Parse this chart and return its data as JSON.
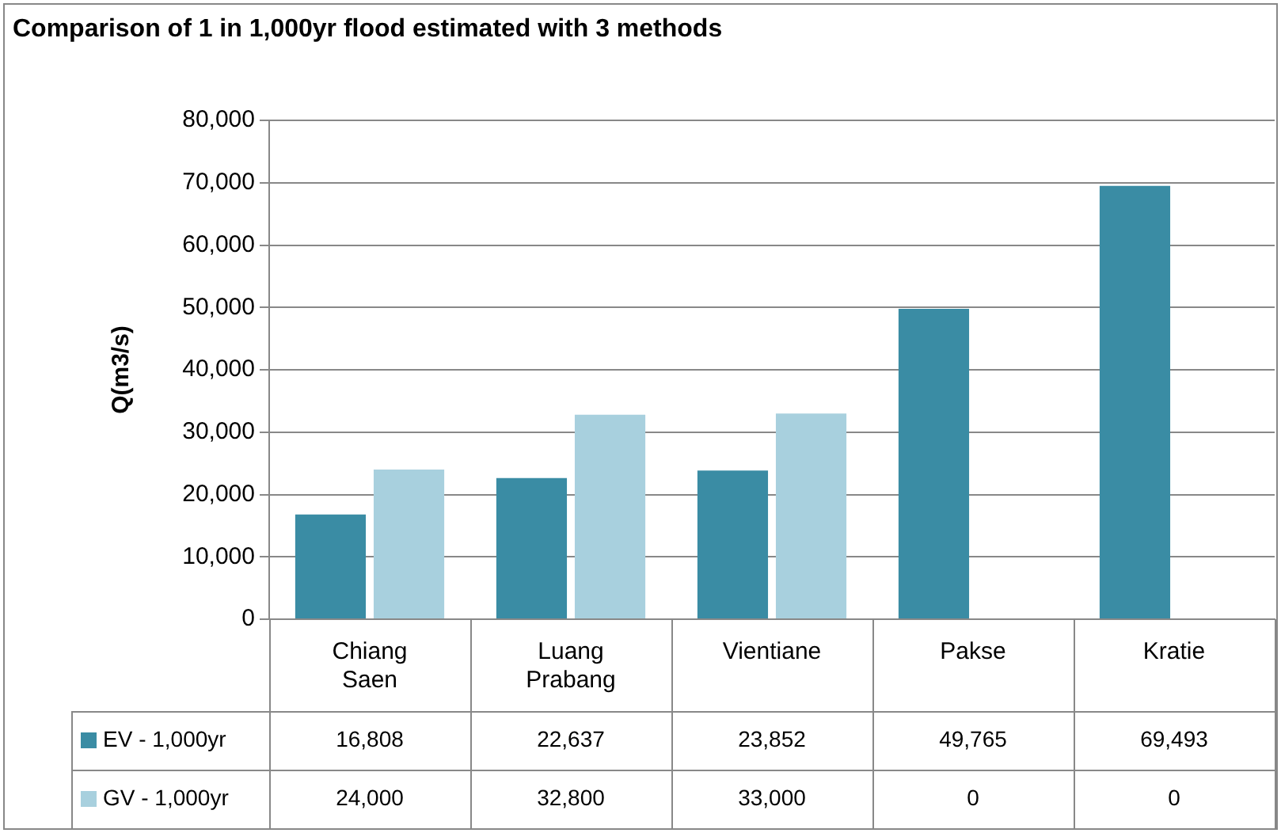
{
  "chart_data": {
    "type": "bar",
    "title": "Comparison of 1 in 1,000yr flood estimated with 3 methods",
    "ylabel": "Q(m3/s)",
    "categories": [
      "Chiang Saen",
      "Luang Prabang",
      "Vientiane",
      "Pakse",
      "Kratie"
    ],
    "series": [
      {
        "name": "EV - 1,000yr",
        "color": "#3a8ca4",
        "values": [
          16808,
          22637,
          23852,
          49765,
          69493
        ],
        "value_labels": [
          "16,808",
          "22,637",
          "23,852",
          "49,765",
          "69,493"
        ]
      },
      {
        "name": "GV - 1,000yr",
        "color": "#a8d0de",
        "values": [
          24000,
          32800,
          33000,
          0,
          0
        ],
        "value_labels": [
          "24,000",
          "32,800",
          "33,000",
          "0",
          "0"
        ]
      }
    ],
    "ylim": [
      0,
      80000
    ],
    "yticks": [
      {
        "value": 0,
        "label": "0"
      },
      {
        "value": 10000,
        "label": "10,000"
      },
      {
        "value": 20000,
        "label": "20,000"
      },
      {
        "value": 30000,
        "label": "30,000"
      },
      {
        "value": 40000,
        "label": "40,000"
      },
      {
        "value": 50000,
        "label": "50,000"
      },
      {
        "value": 60000,
        "label": "60,000"
      },
      {
        "value": 70000,
        "label": "70,000"
      },
      {
        "value": 80000,
        "label": "80,000"
      }
    ],
    "grid": "y",
    "legend": "bottom"
  }
}
